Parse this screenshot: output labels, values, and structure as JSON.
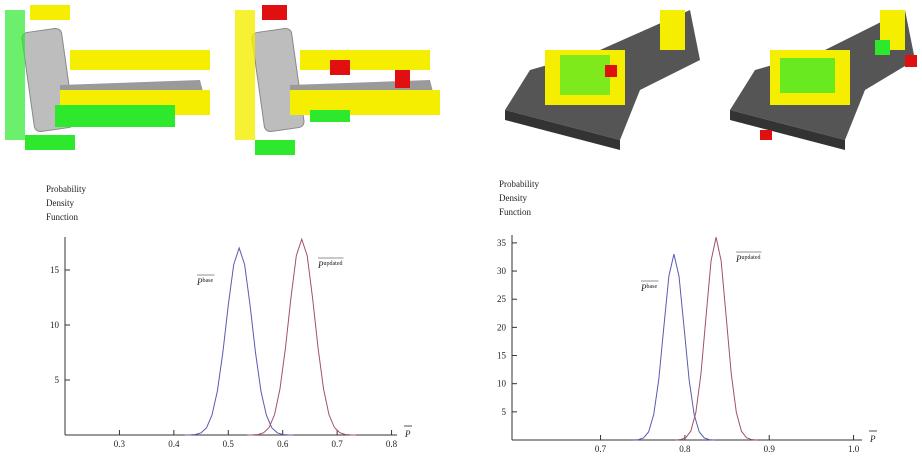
{
  "chart_data": [
    {
      "type": "line",
      "ylabel": [
        "Probability",
        "Density",
        "Function"
      ],
      "xlabel": "P",
      "xlim": [
        0.2,
        0.81
      ],
      "ylim": [
        0,
        18
      ],
      "xticks": [
        0.3,
        0.4,
        0.5,
        0.6,
        0.7,
        0.8
      ],
      "yticks": [
        5,
        10,
        15
      ],
      "series": [
        {
          "name": "P",
          "superscript": "base",
          "color": "#5a5ab4",
          "x": [
            0.42,
            0.43,
            0.44,
            0.45,
            0.46,
            0.47,
            0.48,
            0.49,
            0.5,
            0.51,
            0.52,
            0.53,
            0.54,
            0.55,
            0.56,
            0.57,
            0.58,
            0.59,
            0.6,
            0.61,
            0.62
          ],
          "values": [
            0,
            0.01,
            0.05,
            0.2,
            0.65,
            1.8,
            4.0,
            7.5,
            11.8,
            15.5,
            17,
            15.5,
            11.8,
            7.5,
            4.0,
            1.8,
            0.65,
            0.2,
            0.05,
            0.01,
            0
          ]
        },
        {
          "name": "P",
          "superscript": "updated",
          "color": "#a0506e",
          "x": [
            0.535,
            0.545,
            0.555,
            0.565,
            0.575,
            0.585,
            0.595,
            0.605,
            0.615,
            0.625,
            0.635,
            0.645,
            0.655,
            0.665,
            0.675,
            0.685,
            0.695,
            0.705,
            0.715,
            0.725,
            0.735
          ],
          "values": [
            0,
            0.01,
            0.05,
            0.21,
            0.68,
            1.85,
            4.2,
            7.9,
            12.4,
            16.3,
            17.8,
            16.3,
            12.4,
            7.9,
            4.2,
            1.85,
            0.68,
            0.21,
            0.05,
            0.01,
            0
          ]
        }
      ]
    },
    {
      "type": "line",
      "ylabel": [
        "Probability",
        "Density",
        "Function"
      ],
      "xlabel": "P",
      "xlim": [
        0.595,
        1.01
      ],
      "ylim": [
        0,
        36.4
      ],
      "xticks": [
        0.7,
        0.8,
        0.9,
        {
          "value": 1,
          "label": "1.0"
        }
      ],
      "yticks": [
        5,
        10,
        15,
        20,
        25,
        30,
        35
      ],
      "series": [
        {
          "name": "P",
          "superscript": "base",
          "color": "#5a5ab4",
          "x": [
            0.739,
            0.745,
            0.751,
            0.757,
            0.763,
            0.769,
            0.775,
            0.781,
            0.787,
            0.793,
            0.799,
            0.805,
            0.811,
            0.817,
            0.823,
            0.829,
            0.835
          ],
          "values": [
            0.01,
            0.07,
            0.37,
            1.45,
            4.5,
            10.7,
            20.0,
            29.1,
            33,
            29.1,
            20.0,
            10.7,
            4.5,
            1.45,
            0.37,
            0.07,
            0.01
          ]
        },
        {
          "name": "P",
          "superscript": "updated",
          "color": "#a0506e",
          "x": [
            0.789,
            0.795,
            0.801,
            0.807,
            0.813,
            0.819,
            0.825,
            0.831,
            0.837,
            0.843,
            0.849,
            0.855,
            0.861,
            0.867,
            0.873,
            0.879,
            0.885
          ],
          "values": [
            0.01,
            0.08,
            0.4,
            1.58,
            4.9,
            11.7,
            21.8,
            31.8,
            36,
            31.8,
            21.8,
            11.7,
            4.9,
            1.58,
            0.4,
            0.08,
            0.01
          ]
        }
      ]
    }
  ]
}
